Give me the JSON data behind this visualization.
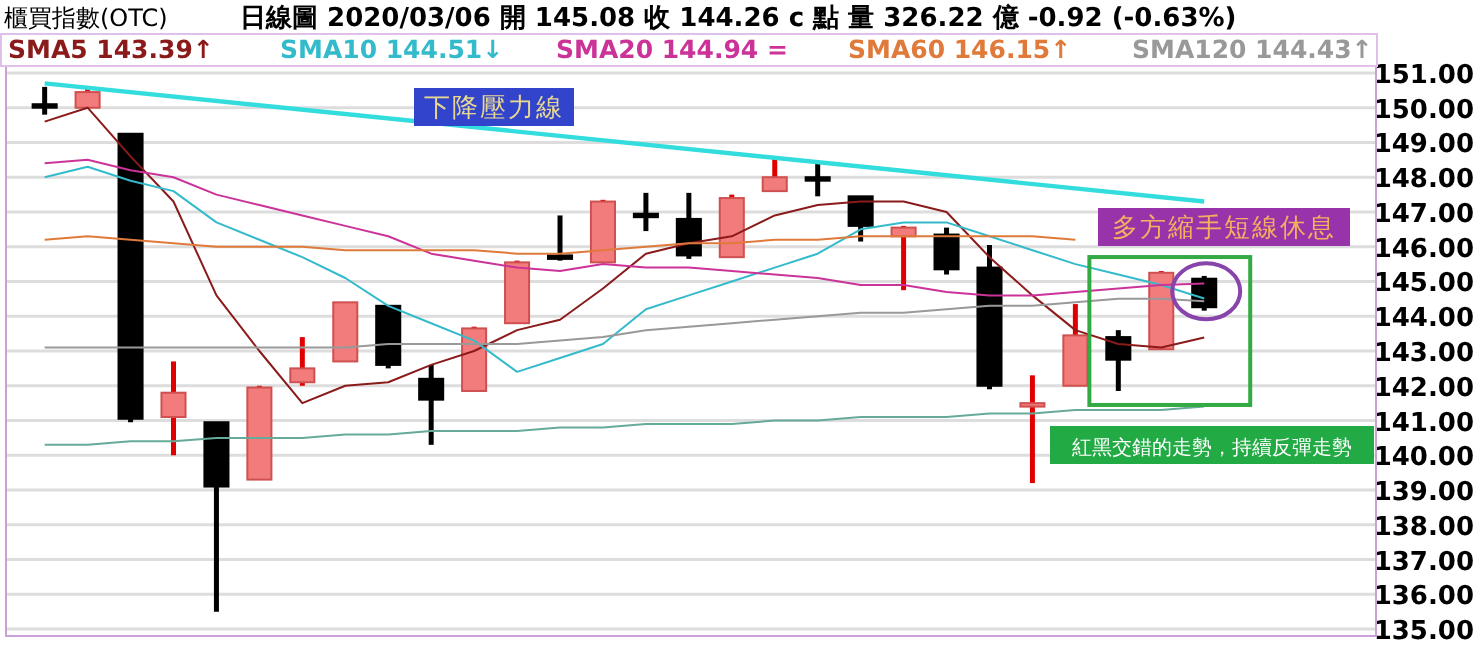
{
  "chart_data": {
    "type": "candlestick",
    "title": "櫃買指數(OTC)",
    "subtitle": "日線圖 2020/03/06 開 145.08 收 144.26 c 點 量 326.22 億 -0.92 (-0.63%)",
    "categories": [
      null,
      null,
      null,
      null,
      null,
      null,
      null,
      null,
      null,
      null,
      null,
      null,
      null,
      null,
      null,
      null,
      null,
      null,
      null,
      null,
      null,
      null,
      null,
      null,
      null,
      null,
      null,
      null
    ],
    "ohlc": [
      [
        150.1,
        150.6,
        149.8,
        150.0
      ],
      [
        150.0,
        150.6,
        150.0,
        150.45
      ],
      [
        149.25,
        149.25,
        140.95,
        141.05
      ],
      [
        141.1,
        142.7,
        140.0,
        141.8
      ],
      [
        140.95,
        140.95,
        135.5,
        139.1
      ],
      [
        139.3,
        142.0,
        139.3,
        141.95
      ],
      [
        142.1,
        143.4,
        142.0,
        142.5
      ],
      [
        142.7,
        144.4,
        142.7,
        144.4
      ],
      [
        144.3,
        144.3,
        142.5,
        142.6
      ],
      [
        142.2,
        142.6,
        140.3,
        141.6
      ],
      [
        141.85,
        143.7,
        141.85,
        143.65
      ],
      [
        143.8,
        145.6,
        143.8,
        145.55
      ],
      [
        145.75,
        146.9,
        145.6,
        145.65
      ],
      [
        145.55,
        147.35,
        145.55,
        147.3
      ],
      [
        146.95,
        147.55,
        146.45,
        146.85
      ],
      [
        146.8,
        147.55,
        145.65,
        145.75
      ],
      [
        145.7,
        147.5,
        145.7,
        147.4
      ],
      [
        147.6,
        148.55,
        147.6,
        148.0
      ],
      [
        148.0,
        148.45,
        147.45,
        147.9
      ],
      [
        147.45,
        147.45,
        146.15,
        146.6
      ],
      [
        146.3,
        146.6,
        144.75,
        146.55
      ],
      [
        146.35,
        146.55,
        145.2,
        145.35
      ],
      [
        145.4,
        146.05,
        141.9,
        142.0
      ],
      [
        141.4,
        142.3,
        139.2,
        141.5
      ],
      [
        142.0,
        144.35,
        142.0,
        143.45
      ],
      [
        143.4,
        143.6,
        141.85,
        142.75
      ],
      [
        143.05,
        145.3,
        143.05,
        145.25
      ],
      [
        145.08,
        145.16,
        144.16,
        144.26
      ]
    ],
    "colors": [
      "#000000",
      "#f27c7c",
      "#000000",
      "#f27c7c",
      "#000000",
      "#f27c7c",
      "#f27c7c",
      "#f27c7c",
      "#000000",
      "#000000",
      "#f27c7c",
      "#f27c7c",
      "#000000",
      "#f27c7c",
      "#000000",
      "#000000",
      "#f27c7c",
      "#f27c7c",
      "#000000",
      "#000000",
      "#f27c7c",
      "#000000",
      "#000000",
      "#f27c7c",
      "#f27c7c",
      "#000000",
      "#f27c7c",
      "#000000"
    ],
    "series": [
      {
        "type": "line",
        "name": "SMA5 143.39↑",
        "color": "#8b1a1a",
        "values": [
          149.6,
          150.0,
          148.6,
          147.3,
          144.6,
          143.0,
          141.5,
          142.0,
          142.1,
          142.6,
          143.0,
          143.6,
          143.9,
          144.8,
          145.8,
          146.1,
          146.3,
          146.9,
          147.2,
          147.3,
          147.3,
          147.0,
          145.7,
          144.6,
          143.6,
          143.2,
          143.1,
          143.39
        ]
      },
      {
        "type": "line",
        "name": "SMA10 144.51↓",
        "color": "#33bbcc",
        "values": [
          148.0,
          148.3,
          147.9,
          147.6,
          146.7,
          146.2,
          145.7,
          145.1,
          144.3,
          143.8,
          143.3,
          142.4,
          142.8,
          143.2,
          144.2,
          144.6,
          145.0,
          145.4,
          145.8,
          146.5,
          146.7,
          146.7,
          146.3,
          145.9,
          145.5,
          145.2,
          144.9,
          144.51
        ]
      },
      {
        "type": "line",
        "name": "SMA20 144.94 =",
        "color": "#cc3399",
        "values": [
          148.4,
          148.5,
          148.2,
          148.0,
          147.5,
          147.2,
          146.9,
          146.6,
          146.3,
          145.8,
          145.6,
          145.4,
          145.3,
          145.5,
          145.4,
          145.4,
          145.3,
          145.2,
          145.1,
          144.9,
          144.9,
          144.7,
          144.6,
          144.6,
          144.7,
          144.8,
          144.9,
          144.94
        ]
      },
      {
        "type": "line",
        "name": "SMA60 146.15↑",
        "color": "#e07a3a",
        "values": [
          146.2,
          146.3,
          146.2,
          146.1,
          146.0,
          146.0,
          146.0,
          145.9,
          145.9,
          145.9,
          145.9,
          145.8,
          145.8,
          145.9,
          146.0,
          146.1,
          146.1,
          146.2,
          146.2,
          146.3,
          146.3,
          146.3,
          146.3,
          146.3,
          146.2,
          null,
          null,
          null
        ]
      },
      {
        "type": "line",
        "name": "SMA120 144.43↑",
        "color": "#999999",
        "values": [
          143.1,
          143.1,
          143.1,
          143.1,
          143.1,
          143.1,
          143.1,
          143.1,
          143.2,
          143.2,
          143.2,
          143.2,
          143.3,
          143.4,
          143.6,
          143.7,
          143.8,
          143.9,
          144.0,
          144.1,
          144.1,
          144.2,
          144.3,
          144.3,
          144.4,
          144.5,
          144.5,
          144.43
        ]
      },
      {
        "type": "line",
        "color": "#66aa99",
        "values": [
          140.3,
          140.3,
          140.4,
          140.4,
          140.5,
          140.5,
          140.5,
          140.6,
          140.6,
          140.7,
          140.7,
          140.7,
          140.8,
          140.8,
          140.9,
          140.9,
          140.9,
          141.0,
          141.0,
          141.1,
          141.1,
          141.1,
          141.2,
          141.2,
          141.3,
          141.3,
          141.3,
          141.4
        ]
      },
      {
        "type": "line",
        "color": "#33dddd",
        "values": [
          150.7,
          null,
          null,
          null,
          null,
          null,
          null,
          null,
          null,
          null,
          null,
          null,
          null,
          null,
          null,
          null,
          null,
          null,
          null,
          null,
          null,
          null,
          null,
          null,
          null,
          null,
          null,
          147.3
        ]
      }
    ],
    "ylim": [
      134.8,
      151.2
    ],
    "yticks": [
      {
        "value": 135,
        "label": "135.00"
      },
      {
        "value": 136,
        "label": "136.00"
      },
      {
        "value": 137,
        "label": "137.00"
      },
      {
        "value": 138,
        "label": "138.00"
      },
      {
        "value": 139,
        "label": "139.00"
      },
      {
        "value": 140,
        "label": "140.00"
      },
      {
        "value": 141,
        "label": "141.00"
      },
      {
        "value": 142,
        "label": "142.00"
      },
      {
        "value": 143,
        "label": "143.00"
      },
      {
        "value": 144,
        "label": "144.00"
      },
      {
        "value": 145,
        "label": "145.00"
      },
      {
        "value": 146,
        "label": "146.00"
      },
      {
        "value": 147,
        "label": "147.00"
      },
      {
        "value": 148,
        "label": "148.00"
      },
      {
        "value": 149,
        "label": "149.00"
      },
      {
        "value": 150,
        "label": "150.00"
      },
      {
        "value": 151,
        "label": "151.00"
      }
    ],
    "grid": "y",
    "legend": "top",
    "annotations": [
      "下降壓力線",
      "多方縮手短線休息",
      "紅黑交錯的走勢，持續反彈走勢"
    ]
  }
}
